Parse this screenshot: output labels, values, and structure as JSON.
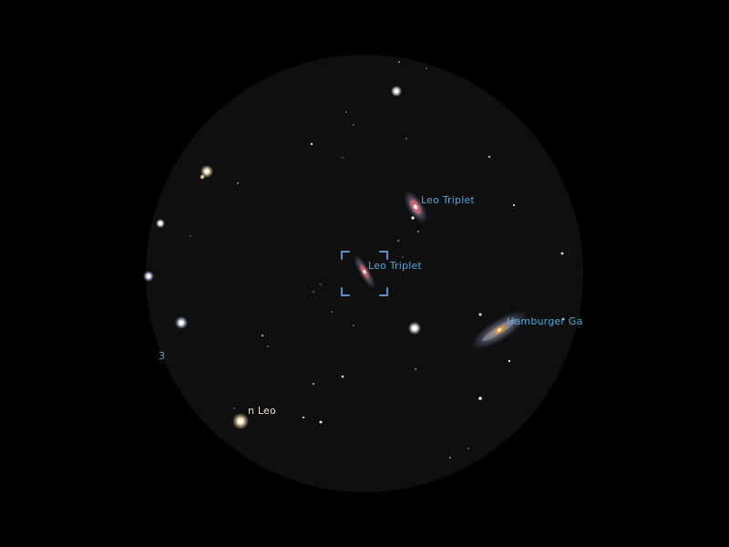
{
  "view": {
    "background_color": "#000000",
    "field_color": "#0f0f0f",
    "label_color_deepsky": "#4fa8d8",
    "label_color_star": "#e8e0c8",
    "selection_marker_color": "#5b8ccc"
  },
  "labels": {
    "galaxy_1": "Leo Triplet",
    "galaxy_2": "Leo Triplet",
    "galaxy_3": "Hamburger Ga",
    "star_n_leo": "n Leo",
    "edge_fragment": "3"
  },
  "objects": {
    "selected": "galaxy_2"
  }
}
